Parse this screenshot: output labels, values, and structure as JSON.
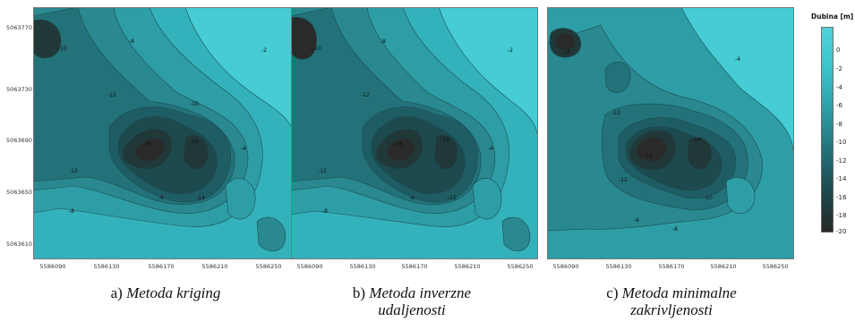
{
  "chart_data": [
    {
      "type": "heatmap",
      "panel_label": "a)",
      "caption": [
        "Metoda kriging"
      ],
      "y_ticks": [
        "5063770",
        "5063730",
        "5063690",
        "5063650",
        "5063610"
      ],
      "x_ticks": [
        "5586090",
        "5586130",
        "5586170",
        "5586210",
        "5586250"
      ],
      "ylim": [
        5063600,
        5063785
      ],
      "xlim": [
        5586070,
        5586265
      ],
      "contour_labels": [
        "-10",
        "-12",
        "-16",
        "-14",
        "-12",
        "-8",
        "-14",
        "-6",
        "-4",
        "-2",
        "-8",
        "-10"
      ]
    },
    {
      "type": "heatmap",
      "panel_label": "b)",
      "caption": [
        "Metoda inverzne",
        "udaljenosti"
      ],
      "x_ticks": [
        "5586090",
        "5586130",
        "5586170",
        "5586210",
        "5586250"
      ],
      "xlim": [
        5586070,
        5586265
      ],
      "contour_labels": [
        "-10",
        "-12",
        "-12",
        "-16",
        "-14",
        "-12",
        "-8",
        "-6",
        "-4",
        "-2",
        "-8"
      ]
    },
    {
      "type": "heatmap",
      "panel_label": "c)",
      "caption": [
        "Metoda minimalne",
        "zakrivljenosti"
      ],
      "x_ticks": [
        "5586090",
        "5586130",
        "5586170",
        "5586210",
        "5586250"
      ],
      "xlim": [
        5586070,
        5586265
      ],
      "contour_labels": [
        "-18",
        "-12",
        "-16",
        "-14",
        "-12",
        "-10",
        "-6",
        "-4",
        "-8"
      ]
    }
  ],
  "legend": {
    "title": "Dubina [m]",
    "ticks": [
      "0",
      "-2",
      "-4",
      "-6",
      "-8",
      "-10",
      "-12",
      "-14",
      "-16",
      "-18",
      "-20"
    ],
    "range": [
      -20,
      2
    ],
    "colors": [
      "#2a2a2a",
      "#213838",
      "#1d4a4e",
      "#1f5d64",
      "#23727a",
      "#298890",
      "#2e9ea6",
      "#34b2bb",
      "#3ac3cb",
      "#45ccd4",
      "#52d2da"
    ]
  }
}
